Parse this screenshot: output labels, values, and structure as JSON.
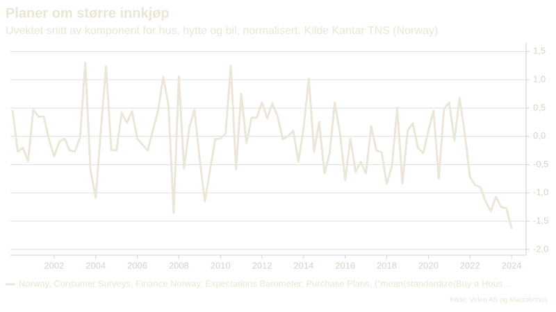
{
  "chart_data": {
    "type": "line",
    "title": "Planer om større innkjøp",
    "subtitle": "Uvektet snitt av komponent for hus, hytte og bil, normalisert. Kilde Kantar TNS (Norway)",
    "source": "Kilde: Viden AS og Macrobonds",
    "x": [
      2000,
      2000.25,
      2000.5,
      2000.75,
      2001,
      2001.25,
      2001.5,
      2001.75,
      2002,
      2002.25,
      2002.5,
      2002.75,
      2003,
      2003.25,
      2003.5,
      2003.75,
      2004,
      2004.25,
      2004.5,
      2004.75,
      2005,
      2005.25,
      2005.5,
      2005.75,
      2006,
      2006.25,
      2006.5,
      2006.75,
      2007,
      2007.25,
      2007.5,
      2007.75,
      2008,
      2008.25,
      2008.5,
      2008.75,
      2009,
      2009.25,
      2009.5,
      2009.75,
      2010,
      2010.25,
      2010.5,
      2010.75,
      2011,
      2011.25,
      2011.5,
      2011.75,
      2012,
      2012.25,
      2012.5,
      2012.75,
      2013,
      2013.25,
      2013.5,
      2013.75,
      2014,
      2014.25,
      2014.5,
      2014.75,
      2015,
      2015.25,
      2015.5,
      2015.75,
      2016,
      2016.25,
      2016.5,
      2016.75,
      2017,
      2017.25,
      2017.5,
      2017.75,
      2018,
      2018.25,
      2018.5,
      2018.75,
      2019,
      2019.25,
      2019.5,
      2019.75,
      2020,
      2020.25,
      2020.5,
      2020.75,
      2021,
      2021.25,
      2021.5,
      2021.75,
      2022,
      2022.25,
      2022.5,
      2022.75,
      2023,
      2023.25,
      2023.5,
      2023.75,
      2024
    ],
    "series": [
      {
        "name": "Norway, Consumer Surveys, Finance Norway, Expectations Barometer, Purchase Plans, (\"mean(standardize(Buy a Hous…",
        "color": "#ece6d8",
        "values": [
          0.47,
          -0.27,
          -0.2,
          -0.44,
          0.47,
          0.35,
          0.35,
          -0.05,
          -0.35,
          -0.1,
          -0.04,
          -0.25,
          -0.27,
          -0.02,
          1.3,
          -0.6,
          -1.08,
          0.1,
          1.24,
          -0.24,
          -0.25,
          0.42,
          0.24,
          0.44,
          -0.04,
          -0.15,
          -0.25,
          0.1,
          0.45,
          1.05,
          0.55,
          -1.35,
          1.06,
          -0.57,
          0.15,
          0.47,
          -0.4,
          -1.15,
          -0.6,
          -0.05,
          -0.04,
          0.05,
          1.25,
          -0.58,
          0.75,
          -0.12,
          0.33,
          0.33,
          0.6,
          0.32,
          0.58,
          0.35,
          -0.05,
          0.0,
          0.1,
          -0.45,
          0.15,
          1.02,
          -0.27,
          0.25,
          -0.65,
          -0.3,
          0.6,
          0.05,
          -0.77,
          -0.04,
          -0.63,
          -0.45,
          -0.65,
          0.18,
          -0.25,
          -0.28,
          -0.84,
          -0.52,
          0.5,
          -0.83,
          0.1,
          0.23,
          -0.2,
          -0.3,
          0.1,
          0.45,
          -0.75,
          0.48,
          0.6,
          -0.07,
          0.68,
          0.05,
          -0.72,
          -0.86,
          -0.9,
          -1.15,
          -1.32,
          -1.07,
          -1.25,
          -1.27,
          -1.63
        ]
      }
    ],
    "xlim": [
      1999.9,
      2024.7
    ],
    "xticks": [
      2002,
      2004,
      2006,
      2008,
      2010,
      2012,
      2014,
      2016,
      2018,
      2020,
      2022,
      2024
    ],
    "ylim": [
      -2.1,
      1.65
    ],
    "yticks": [
      {
        "value": 1.5,
        "label": "1,5"
      },
      {
        "value": 1.0,
        "label": "1,0"
      },
      {
        "value": 0.5,
        "label": "0,5"
      },
      {
        "value": 0.0,
        "label": "0,0"
      },
      {
        "value": -0.5,
        "label": "-0,5"
      },
      {
        "value": -1.0,
        "label": "-1,0"
      },
      {
        "value": -1.5,
        "label": "-1,5"
      },
      {
        "value": -2.0,
        "label": "-2,0"
      }
    ],
    "grid": true
  }
}
